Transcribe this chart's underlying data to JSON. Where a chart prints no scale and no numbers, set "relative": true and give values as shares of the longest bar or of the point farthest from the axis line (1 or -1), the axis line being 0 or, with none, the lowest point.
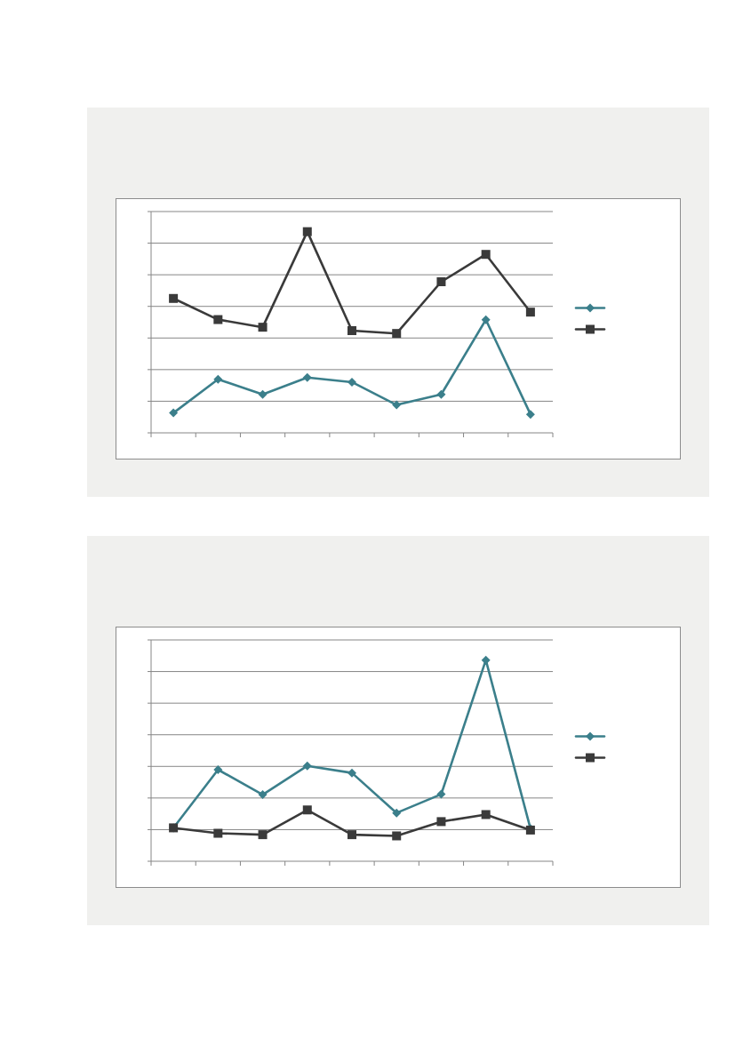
{
  "chart_data": [
    {
      "type": "line",
      "relative": true,
      "categories": [
        null,
        null,
        null,
        null,
        null,
        null,
        null,
        null,
        null
      ],
      "series": [
        {
          "color": "#3b7f8b",
          "marker": "diamond",
          "values": [
            0.099,
            0.266,
            0.191,
            0.275,
            0.252,
            0.139,
            0.191,
            0.562,
            0.092
          ]
        },
        {
          "color": "#3a3a3a",
          "marker": "square",
          "values": [
            0.668,
            0.563,
            0.525,
            1,
            0.508,
            0.494,
            0.751,
            0.887,
            0.6
          ]
        }
      ],
      "grid": "y"
    },
    {
      "type": "line",
      "relative": true,
      "categories": [
        null,
        null,
        null,
        null,
        null,
        null,
        null,
        null,
        null
      ],
      "series": [
        {
          "color": "#3b7f8b",
          "marker": "diamond",
          "values": [
            0.166,
            0.455,
            0.331,
            0.474,
            0.439,
            0.24,
            0.333,
            1,
            0.162
          ]
        },
        {
          "color": "#3a3a3a",
          "marker": "square",
          "values": [
            0.166,
            0.139,
            0.132,
            0.255,
            0.132,
            0.126,
            0.197,
            0.232,
            0.155
          ]
        }
      ],
      "grid": "y"
    }
  ]
}
